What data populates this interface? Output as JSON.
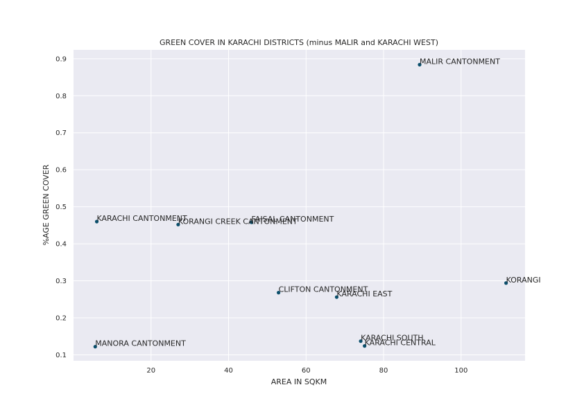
{
  "chart_data": {
    "type": "scatter",
    "title": "GREEN COVER IN KARACHI DISTRICTS (minus MALIR and KARACHI WEST)",
    "xlabel": "AREA IN SQKM",
    "ylabel": "%AGE GREEN COVER",
    "xlim": [
      0,
      116.5
    ],
    "ylim": [
      0.084,
      0.924
    ],
    "xticks": [
      20,
      40,
      60,
      80,
      100
    ],
    "yticks": [
      0.1,
      0.2,
      0.3,
      0.4,
      0.5,
      0.6,
      0.7,
      0.8,
      0.9
    ],
    "grid": true,
    "point_color": "#0b4f6c",
    "background": "#eaeaf2",
    "points": [
      {
        "label": "MALIR CANTONMENT",
        "x": 89.3,
        "y": 0.884
      },
      {
        "label": "KARACHI CANTONMENT",
        "x": 6.0,
        "y": 0.46
      },
      {
        "label": "KORANGI CREEK CANTONMENT",
        "x": 27.0,
        "y": 0.452
      },
      {
        "label": "FAISAL CANTONMENT",
        "x": 45.9,
        "y": 0.458
      },
      {
        "label": "KORANGI",
        "x": 111.6,
        "y": 0.294
      },
      {
        "label": "CLIFTON CANTONMENT",
        "x": 52.9,
        "y": 0.268
      },
      {
        "label": "KARACHI EAST",
        "x": 67.9,
        "y": 0.256
      },
      {
        "label": "KARACHI SOUTH",
        "x": 74.1,
        "y": 0.137
      },
      {
        "label": "KARACHI CENTRAL",
        "x": 75.1,
        "y": 0.124
      },
      {
        "label": "MANORA CANTONMENT",
        "x": 5.6,
        "y": 0.122
      }
    ]
  }
}
